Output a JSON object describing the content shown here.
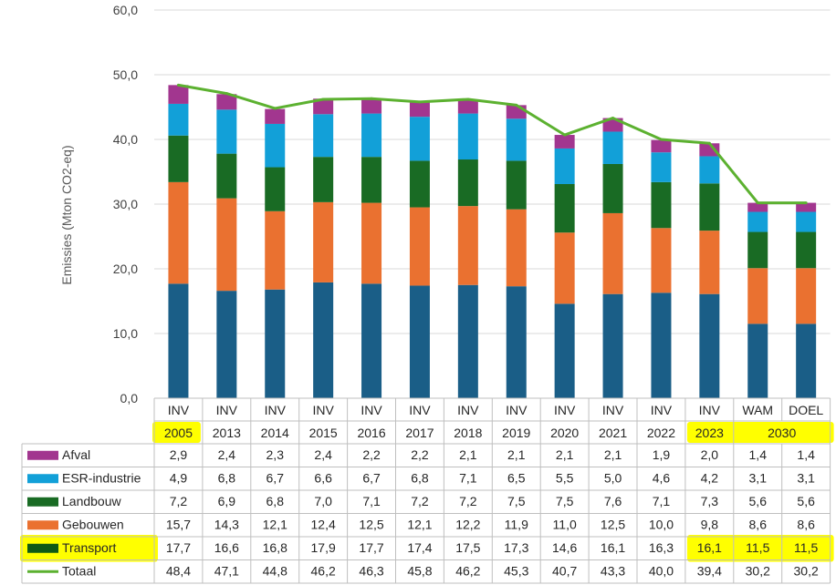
{
  "chart_data": {
    "type": "bar",
    "stacked": true,
    "ylabel": "Emissies (Mton CO2-eq)",
    "ylim": [
      0,
      60
    ],
    "yticks": [
      "0,0",
      "10,0",
      "20,0",
      "30,0",
      "40,0",
      "50,0",
      "60,0"
    ],
    "categories_top": [
      "INV",
      "INV",
      "INV",
      "INV",
      "INV",
      "INV",
      "INV",
      "INV",
      "INV",
      "INV",
      "INV",
      "INV",
      "WAM",
      "DOEL"
    ],
    "categories_year": [
      "2005",
      "2013",
      "2014",
      "2015",
      "2016",
      "2017",
      "2018",
      "2019",
      "2020",
      "2021",
      "2022",
      "2023",
      "2030",
      ""
    ],
    "highlighted_years": [
      "2005",
      "2023",
      "2030"
    ],
    "series": [
      {
        "name": "Transport",
        "color": "#1a5e87",
        "values": [
          17.7,
          16.6,
          16.8,
          17.9,
          17.7,
          17.4,
          17.5,
          17.3,
          14.6,
          16.1,
          16.3,
          16.1,
          11.5,
          11.5
        ],
        "labels": [
          "17,7",
          "16,6",
          "16,8",
          "17,9",
          "17,7",
          "17,4",
          "17,5",
          "17,3",
          "14,6",
          "16,1",
          "16,3",
          "16,1",
          "11,5",
          "11,5"
        ],
        "legend_color": "#0f5a16",
        "highlight": true
      },
      {
        "name": "Gebouwen",
        "color": "#ea7130",
        "values": [
          15.7,
          14.3,
          12.1,
          12.4,
          12.5,
          12.1,
          12.2,
          11.9,
          11.0,
          12.5,
          10.0,
          9.8,
          8.6,
          8.6
        ],
        "labels": [
          "15,7",
          "14,3",
          "12,1",
          "12,4",
          "12,5",
          "12,1",
          "12,2",
          "11,9",
          "11,0",
          "12,5",
          "10,0",
          "9,8",
          "8,6",
          "8,6"
        ],
        "legend_color": "#ea7130"
      },
      {
        "name": "Landbouw",
        "color": "#196b24",
        "values": [
          7.2,
          6.9,
          6.8,
          7.0,
          7.1,
          7.2,
          7.2,
          7.5,
          7.5,
          7.6,
          7.1,
          7.3,
          5.6,
          5.6
        ],
        "labels": [
          "7,2",
          "6,9",
          "6,8",
          "7,0",
          "7,1",
          "7,2",
          "7,2",
          "7,5",
          "7,5",
          "7,6",
          "7,1",
          "7,3",
          "5,6",
          "5,6"
        ],
        "legend_color": "#196b24"
      },
      {
        "name": "ESR-industrie",
        "color": "#12a0d8",
        "values": [
          4.9,
          6.8,
          6.7,
          6.6,
          6.7,
          6.8,
          7.1,
          6.5,
          5.5,
          5.0,
          4.6,
          4.2,
          3.1,
          3.1
        ],
        "labels": [
          "4,9",
          "6,8",
          "6,7",
          "6,6",
          "6,7",
          "6,8",
          "7,1",
          "6,5",
          "5,5",
          "5,0",
          "4,6",
          "4,2",
          "3,1",
          "3,1"
        ],
        "legend_color": "#12a0d8"
      },
      {
        "name": "Afval",
        "color": "#a2368f",
        "values": [
          2.9,
          2.4,
          2.3,
          2.4,
          2.2,
          2.2,
          2.1,
          2.1,
          2.1,
          2.1,
          1.9,
          2.0,
          1.4,
          1.4
        ],
        "labels": [
          "2,9",
          "2,4",
          "2,3",
          "2,4",
          "2,2",
          "2,2",
          "2,1",
          "2,1",
          "2,1",
          "2,1",
          "1,9",
          "2,0",
          "1,4",
          "1,4"
        ],
        "legend_color": "#a2368f"
      }
    ],
    "line": {
      "name": "Totaal",
      "color": "#5cb130",
      "values": [
        48.4,
        47.1,
        44.8,
        46.2,
        46.3,
        45.8,
        46.2,
        45.3,
        40.7,
        43.3,
        40.0,
        39.4,
        30.2,
        30.2
      ],
      "labels": [
        "48,4",
        "47,1",
        "44,8",
        "46,2",
        "46,3",
        "45,8",
        "46,2",
        "45,3",
        "40,7",
        "43,3",
        "40,0",
        "39,4",
        "30,2",
        "30,2"
      ]
    },
    "table_row_order": [
      "Afval",
      "ESR-industrie",
      "Landbouw",
      "Gebouwen",
      "Transport",
      "Totaal"
    ],
    "highlight_color": "#ffff00"
  }
}
